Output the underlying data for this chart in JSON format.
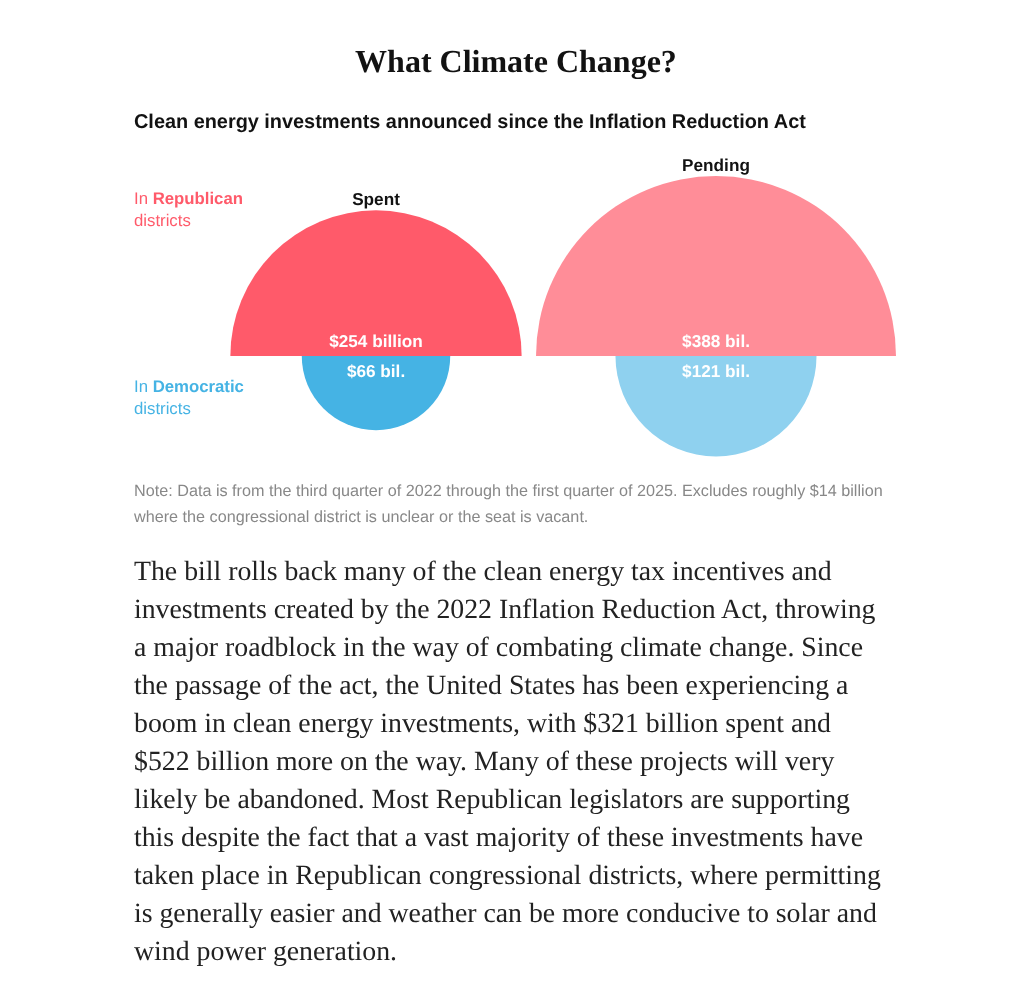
{
  "chart_data": {
    "type": "other",
    "title": "What Climate Change?",
    "subtitle": "Clean energy investments announced since the Inflation Reduction Act",
    "categories": [
      "Spent",
      "Pending"
    ],
    "series": [
      {
        "name": "In Republican districts",
        "colors": [
          "#ff5a6a",
          "#ff8d98"
        ],
        "values": [
          254,
          388
        ],
        "value_labels": [
          "$254 billion",
          "$388 bil."
        ]
      },
      {
        "name": "In Democratic districts",
        "colors": [
          "#45b3e4",
          "#8fd1ef"
        ],
        "values": [
          66,
          121
        ],
        "value_labels": [
          "$66 bil.",
          "$121 bil."
        ]
      }
    ],
    "annotations": [
      "Note: Data is from the third quarter of 2022 through the first quarter of 2025. Excludes roughly $14 billion where the congressional district is unclear or the seat is vacant.",
      "The bill rolls back many of the clean energy tax incentives and investments created by the 2022 Inflation Reduction Act, throwing a major roadblock in the way of combating climate change. Since the passage of the act, the United States has been experiencing a boom in clean energy investments, with $321 billion spent and $522 billion more on the way. Many of these projects will very likely be abandoned. Most Republican legislators are supporting this despite the fact that a vast majority of these investments have taken place in Republican congressional districts, where permitting is generally easier and weather can be more conducive to solar and wind power generation."
    ]
  }
}
